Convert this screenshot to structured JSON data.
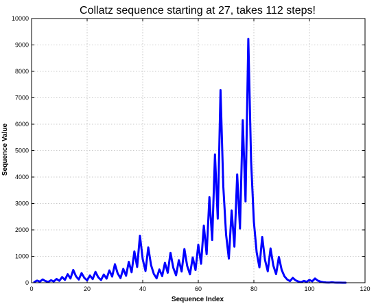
{
  "chart_data": {
    "type": "line",
    "title": "Collatz sequence starting at 27, takes 112 steps!",
    "xlabel": "Sequence Index",
    "ylabel": "Sequence Value",
    "xlim": [
      0,
      120
    ],
    "ylim": [
      0,
      10000
    ],
    "xticks": [
      0,
      20,
      40,
      60,
      80,
      100,
      120
    ],
    "yticks": [
      0,
      1000,
      2000,
      3000,
      4000,
      5000,
      6000,
      7000,
      8000,
      9000,
      10000
    ],
    "grid": true,
    "series": [
      {
        "color": "#0000ff",
        "x": [
          1,
          2,
          3,
          4,
          5,
          6,
          7,
          8,
          9,
          10,
          11,
          12,
          13,
          14,
          15,
          16,
          17,
          18,
          19,
          20,
          21,
          22,
          23,
          24,
          25,
          26,
          27,
          28,
          29,
          30,
          31,
          32,
          33,
          34,
          35,
          36,
          37,
          38,
          39,
          40,
          41,
          42,
          43,
          44,
          45,
          46,
          47,
          48,
          49,
          50,
          51,
          52,
          53,
          54,
          55,
          56,
          57,
          58,
          59,
          60,
          61,
          62,
          63,
          64,
          65,
          66,
          67,
          68,
          69,
          70,
          71,
          72,
          73,
          74,
          75,
          76,
          77,
          78,
          79,
          80,
          81,
          82,
          83,
          84,
          85,
          86,
          87,
          88,
          89,
          90,
          91,
          92,
          93,
          94,
          95,
          96,
          97,
          98,
          99,
          100,
          101,
          102,
          103,
          104,
          105,
          106,
          107,
          108,
          109,
          110,
          111,
          112,
          113
        ],
        "values": [
          27,
          82,
          41,
          124,
          62,
          31,
          94,
          47,
          142,
          71,
          214,
          107,
          322,
          161,
          484,
          242,
          121,
          364,
          182,
          91,
          274,
          137,
          412,
          206,
          103,
          310,
          155,
          466,
          233,
          700,
          350,
          175,
          526,
          263,
          790,
          395,
          1186,
          593,
          1780,
          890,
          445,
          1336,
          668,
          334,
          167,
          502,
          251,
          754,
          377,
          1132,
          566,
          283,
          850,
          425,
          1276,
          638,
          319,
          958,
          479,
          1438,
          719,
          2158,
          1079,
          3238,
          1619,
          4858,
          2429,
          7288,
          3644,
          1822,
          911,
          2734,
          1367,
          4102,
          2051,
          6154,
          3077,
          9232,
          4616,
          2308,
          1154,
          577,
          1732,
          866,
          433,
          1300,
          650,
          325,
          976,
          488,
          244,
          122,
          61,
          184,
          92,
          46,
          23,
          70,
          35,
          106,
          53,
          160,
          80,
          40,
          20,
          10,
          5,
          16,
          8,
          4,
          2,
          1,
          1
        ]
      }
    ]
  }
}
